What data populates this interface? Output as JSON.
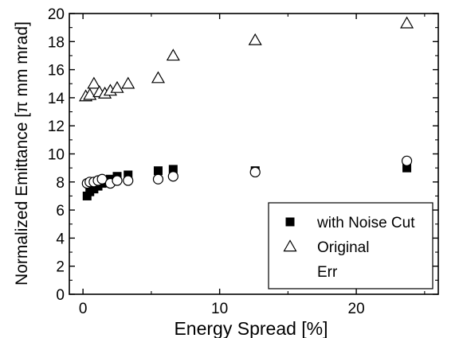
{
  "chart_data": {
    "type": "scatter",
    "xlabel": "Energy Spread [%]",
    "ylabel": "Normalized Emittance [π mm mrad]",
    "xlim": [
      -1,
      26
    ],
    "ylim": [
      0,
      20
    ],
    "x_ticks": [
      0,
      10,
      20
    ],
    "y_ticks": [
      0,
      2,
      4,
      6,
      8,
      10,
      12,
      14,
      16,
      18,
      20
    ],
    "legend_position": "bottom-right",
    "series": [
      {
        "name": "with Noise Cut",
        "marker": "filled-square",
        "color": "#000000",
        "x": [
          0.3,
          0.5,
          0.8,
          1.1,
          1.4,
          2.0,
          2.5,
          3.3,
          5.5,
          6.6,
          12.6,
          23.7
        ],
        "y": [
          7.0,
          7.3,
          7.5,
          7.7,
          7.9,
          8.2,
          8.4,
          8.5,
          8.8,
          8.9,
          8.8,
          9.0
        ]
      },
      {
        "name": "Original",
        "marker": "open-triangle",
        "color": "#000000",
        "x": [
          0.2,
          0.5,
          0.8,
          1.2,
          1.6,
          2.0,
          2.5,
          3.3,
          5.5,
          6.6,
          12.6,
          23.7
        ],
        "y": [
          14.1,
          14.2,
          15.0,
          14.4,
          14.3,
          14.5,
          14.7,
          15.0,
          15.4,
          17.0,
          18.1,
          19.3
        ]
      },
      {
        "name": "Err",
        "marker": "open-circle",
        "color": "#000000",
        "x": [
          0.3,
          0.5,
          0.8,
          1.1,
          1.4,
          2.0,
          2.5,
          3.3,
          5.5,
          6.6,
          12.6,
          23.7
        ],
        "y": [
          7.9,
          8.0,
          8.0,
          8.1,
          8.2,
          7.9,
          8.1,
          8.1,
          8.2,
          8.4,
          8.7,
          9.5
        ]
      }
    ]
  }
}
